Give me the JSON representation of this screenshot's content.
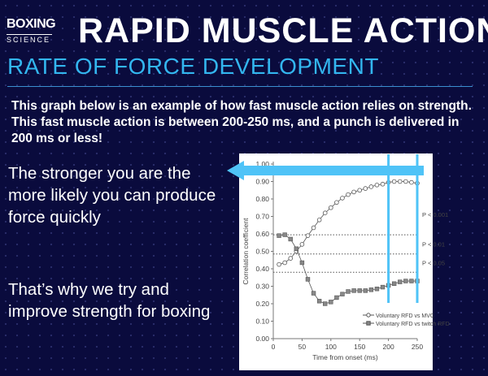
{
  "logo": {
    "line1": "BOXING",
    "line2": "SCIENCE"
  },
  "header": {
    "title": "RAPID MUSCLE ACTION",
    "subtitle": "RATE OF FORCE DEVELOPMENT"
  },
  "intro": "This graph below is an example of how fast muscle action relies on strength. This fast muscle action is between 200-250 ms, and a punch is delivered in 200 ms or less!",
  "side": {
    "point1": "The stronger you are the more likely you can produce force quickly",
    "point2": "That’s why we try and improve strength for boxing"
  },
  "colors": {
    "background": "#0a0b3d",
    "accent": "#33b6ef",
    "highlight": "#4fc3f7"
  },
  "chart_data": {
    "type": "line",
    "xlabel": "Time from onset (ms)",
    "ylabel": "Correlation coefficient",
    "xlim": [
      0,
      250
    ],
    "ylim": [
      0,
      1
    ],
    "xticks": [
      "0",
      "50",
      "100",
      "150",
      "200",
      "250"
    ],
    "yticks": [
      "0.00",
      "0.10",
      "0.20",
      "0.30",
      "0.40",
      "0.50",
      "0.60",
      "0.70",
      "0.80",
      "0.90",
      "1.00"
    ],
    "x": [
      10,
      20,
      30,
      40,
      50,
      60,
      70,
      80,
      90,
      100,
      110,
      120,
      130,
      140,
      150,
      160,
      170,
      180,
      190,
      200,
      210,
      220,
      230,
      240,
      250
    ],
    "series": [
      {
        "name": "Voluntary RFD vs MVC",
        "marker": "open-circle",
        "values": [
          0.425,
          0.435,
          0.46,
          0.5,
          0.54,
          0.59,
          0.635,
          0.68,
          0.72,
          0.75,
          0.78,
          0.805,
          0.825,
          0.84,
          0.85,
          0.86,
          0.87,
          0.88,
          0.885,
          0.895,
          0.9,
          0.9,
          0.9,
          0.895,
          0.89
        ]
      },
      {
        "name": "Voluntary RFD vs twitch RFD",
        "marker": "filled-square",
        "values": [
          0.59,
          0.595,
          0.57,
          0.515,
          0.435,
          0.34,
          0.26,
          0.215,
          0.2,
          0.21,
          0.235,
          0.255,
          0.27,
          0.275,
          0.275,
          0.275,
          0.28,
          0.285,
          0.295,
          0.305,
          0.315,
          0.325,
          0.33,
          0.33,
          0.33
        ]
      }
    ],
    "thresholds": [
      {
        "label": "P < 0.001",
        "value": 0.595
      },
      {
        "label": "P < 0.01",
        "value": 0.485
      },
      {
        "label": "P < 0.05",
        "value": 0.38
      }
    ],
    "highlight_x": [
      200,
      250
    ],
    "legend": "bottom-right"
  }
}
